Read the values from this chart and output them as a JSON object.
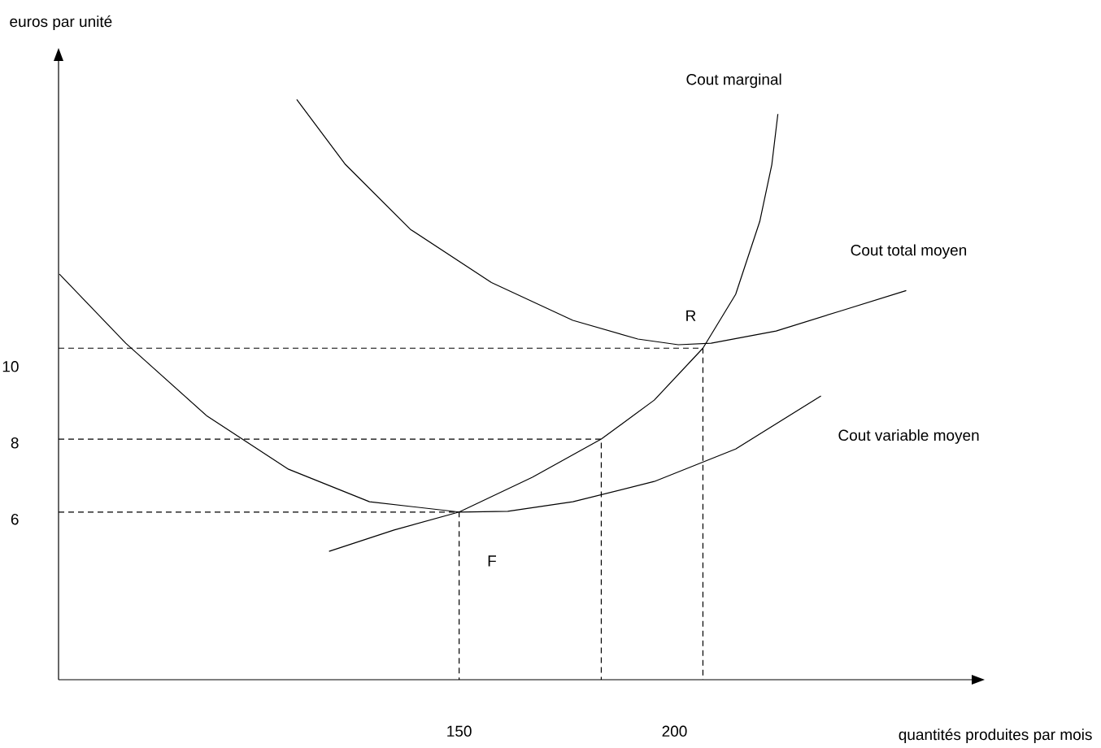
{
  "chart_data": {
    "type": "line",
    "xlabel": "quantités produites par mois",
    "ylabel": "euros par unité",
    "xlim": [
      57,
      269
    ],
    "ylim": [
      1.8,
      18
    ],
    "xticks": [
      150,
      200
    ],
    "yticks": [
      6,
      8,
      10
    ],
    "series": [
      {
        "name": "Cout marginal",
        "color": "#000000",
        "x": [
          119.8,
          134.9,
          150,
          167,
          183,
          195.3,
          206.6,
          214.2,
          219.8,
          222.6,
          224
        ],
        "values": [
          5.16,
          5.72,
          6.19,
          7.1,
          8.1,
          9.12,
          10.48,
          11.89,
          13.8,
          15.29,
          16.61
        ]
      },
      {
        "name": "Cout total moyen",
        "color": "#000000",
        "x": [
          112.3,
          123.6,
          138.7,
          157.5,
          176.4,
          191.5,
          200.9,
          208.5,
          223.6,
          238.7,
          253.8
        ],
        "values": [
          16.99,
          15.29,
          13.59,
          12.2,
          11.21,
          10.72,
          10.57,
          10.61,
          10.93,
          11.46,
          11.99
        ]
      },
      {
        "name": "Cout variable moyen",
        "color": "#000000",
        "x": [
          57.2,
          72.6,
          91.5,
          110.4,
          129.2,
          150,
          161.3,
          176.4,
          195.3,
          214.2,
          234
        ],
        "values": [
          12.42,
          10.61,
          8.7,
          7.31,
          6.46,
          6.19,
          6.21,
          6.46,
          6.99,
          7.84,
          9.23
        ]
      },
      {
        "color": "#000000",
        "line_style": "dashed",
        "x": [
          57,
          206.6,
          206.6
        ],
        "values": [
          10.48,
          10.48,
          1.8
        ]
      },
      {
        "color": "#000000",
        "line_style": "dashed",
        "x": [
          57,
          183,
          183
        ],
        "values": [
          8.1,
          8.1,
          1.8
        ]
      },
      {
        "color": "#000000",
        "line_style": "dashed",
        "x": [
          57,
          150,
          150
        ],
        "values": [
          6.19,
          6.19,
          1.8
        ]
      }
    ],
    "annotations": [
      {
        "text": "R",
        "x": 206.6,
        "y": 10.48
      },
      "F"
    ],
    "marker": "none",
    "line_style": "solid"
  }
}
